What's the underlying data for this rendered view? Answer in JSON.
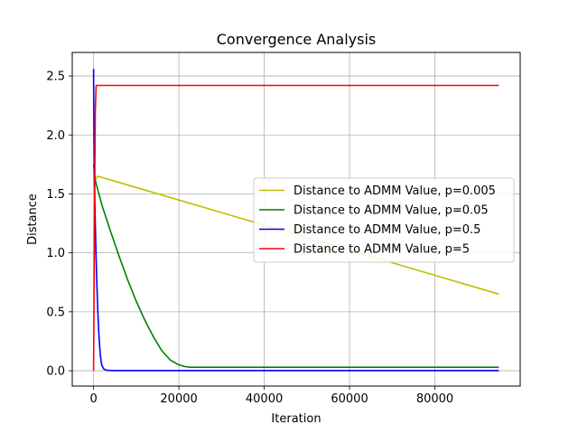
{
  "chart_data": {
    "type": "line",
    "title": "Convergence Analysis",
    "xlabel": "Iteration",
    "ylabel": "Distance",
    "xlim": [
      -5000,
      100000
    ],
    "ylim": [
      -0.13,
      2.7
    ],
    "xticks": [
      0,
      20000,
      40000,
      60000,
      80000
    ],
    "xtick_labels": [
      "0",
      "20000",
      "40000",
      "60000",
      "80000"
    ],
    "yticks": [
      0.0,
      0.5,
      1.0,
      1.5,
      2.0,
      2.5
    ],
    "ytick_labels": [
      "0.0",
      "0.5",
      "1.0",
      "1.5",
      "2.0",
      "2.5"
    ],
    "grid": true,
    "legend_position": "center right",
    "series": [
      {
        "name": "Distance to ADMM Value, p=0.005",
        "color": "#bfbf00",
        "x": [
          0,
          300,
          1000,
          95000
        ],
        "y": [
          1.68,
          1.62,
          1.65,
          0.65
        ]
      },
      {
        "name": "Distance to ADMM Value, p=0.05",
        "color": "#008000",
        "x": [
          0,
          200,
          500,
          2000,
          4000,
          6000,
          8000,
          10000,
          12000,
          14000,
          16000,
          18000,
          20000,
          21500,
          22500,
          95000
        ],
        "y": [
          1.75,
          1.68,
          1.6,
          1.4,
          1.18,
          0.97,
          0.77,
          0.59,
          0.43,
          0.29,
          0.17,
          0.09,
          0.05,
          0.035,
          0.03,
          0.03
        ]
      },
      {
        "name": "Distance to ADMM Value, p=0.5",
        "color": "#0000ff",
        "x": [
          0,
          20,
          100,
          200,
          400,
          600,
          800,
          1000,
          1200,
          1400,
          1600,
          1800,
          2000,
          2400,
          3000,
          4000,
          95000
        ],
        "y": [
          2.56,
          2.4,
          1.95,
          1.62,
          1.25,
          0.95,
          0.7,
          0.5,
          0.34,
          0.22,
          0.13,
          0.07,
          0.04,
          0.015,
          0.005,
          0.002,
          0.002
        ]
      },
      {
        "name": "Distance to ADMM Value, p=5",
        "color": "#ff0000",
        "x": [
          0,
          200,
          400,
          600,
          95000
        ],
        "y": [
          0.0,
          1.2,
          2.2,
          2.42,
          2.42
        ]
      }
    ]
  }
}
